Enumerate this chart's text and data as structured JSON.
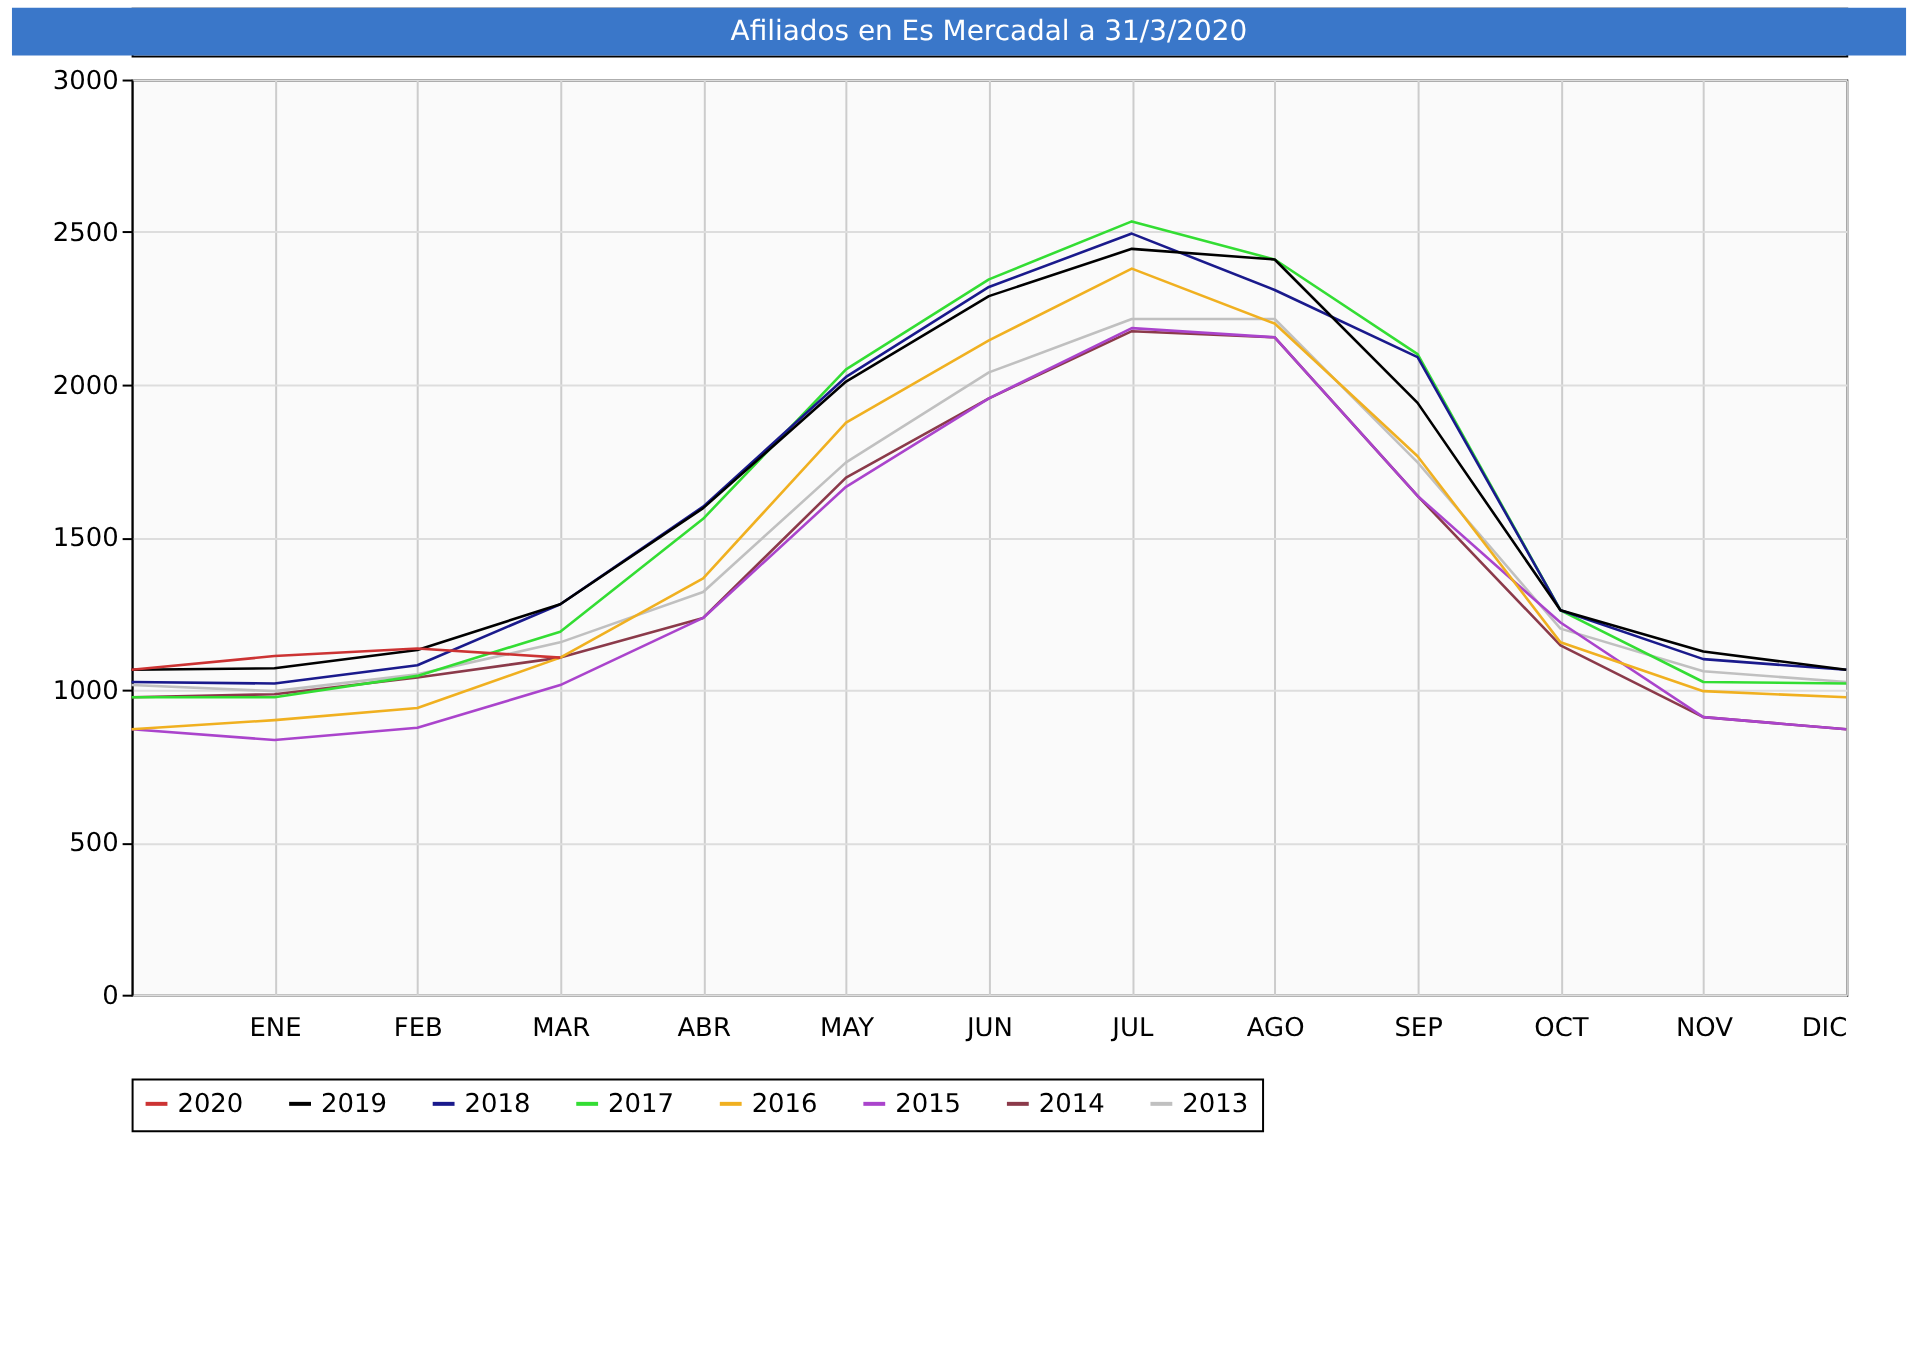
{
  "chart_data": {
    "type": "line",
    "title": "Afiliados en Es Mercadal a 31/3/2020",
    "categories": [
      null,
      "ENE",
      "FEB",
      "MAR",
      "ABR",
      "MAY",
      "JUN",
      "JUL",
      "AGO",
      "SEP",
      "OCT",
      "NOV",
      "DIC"
    ],
    "series": [
      {
        "name": "2020",
        "color": "#cc3333",
        "values": [
          1065,
          1110,
          1135,
          1105,
          null,
          null,
          null,
          null,
          null,
          null,
          null,
          null,
          null
        ]
      },
      {
        "name": "2019",
        "color": "#000000",
        "values": [
          1065,
          1070,
          1130,
          1280,
          1595,
          2010,
          2290,
          2445,
          2410,
          1940,
          1260,
          1125,
          1065
        ]
      },
      {
        "name": "2018",
        "color": "#1a1a8c",
        "values": [
          1025,
          1020,
          1080,
          1280,
          1600,
          2025,
          2320,
          2495,
          2310,
          2090,
          1260,
          1100,
          1065
        ]
      },
      {
        "name": "2017",
        "color": "#33dd33",
        "values": [
          975,
          975,
          1045,
          1190,
          1560,
          2050,
          2345,
          2535,
          2410,
          2100,
          1260,
          1025,
          1020
        ]
      },
      {
        "name": "2016",
        "color": "#f0b020",
        "values": [
          870,
          900,
          940,
          1105,
          1365,
          1875,
          2145,
          2380,
          2200,
          1765,
          1155,
          995,
          975
        ]
      },
      {
        "name": "2015",
        "color": "#aa44cc",
        "values": [
          870,
          835,
          875,
          1015,
          1235,
          1665,
          1955,
          2185,
          2155,
          1635,
          1220,
          910,
          870
        ]
      },
      {
        "name": "2014",
        "color": "#8b3a4a",
        "values": [
          975,
          985,
          1040,
          1105,
          1235,
          1695,
          1955,
          2175,
          2155,
          1635,
          1145,
          910,
          870
        ]
      },
      {
        "name": "2013",
        "color": "#c0c0c0",
        "values": [
          1015,
          995,
          1050,
          1155,
          1320,
          1745,
          2040,
          2215,
          2215,
          1745,
          1200,
          1060,
          1025
        ]
      }
    ],
    "ylim": [
      0,
      3000
    ],
    "yticks": [
      0,
      500,
      1000,
      1500,
      2000,
      2500,
      3000
    ],
    "grid": true,
    "legend": "bottom",
    "marker": "none",
    "line_style": "solid"
  }
}
